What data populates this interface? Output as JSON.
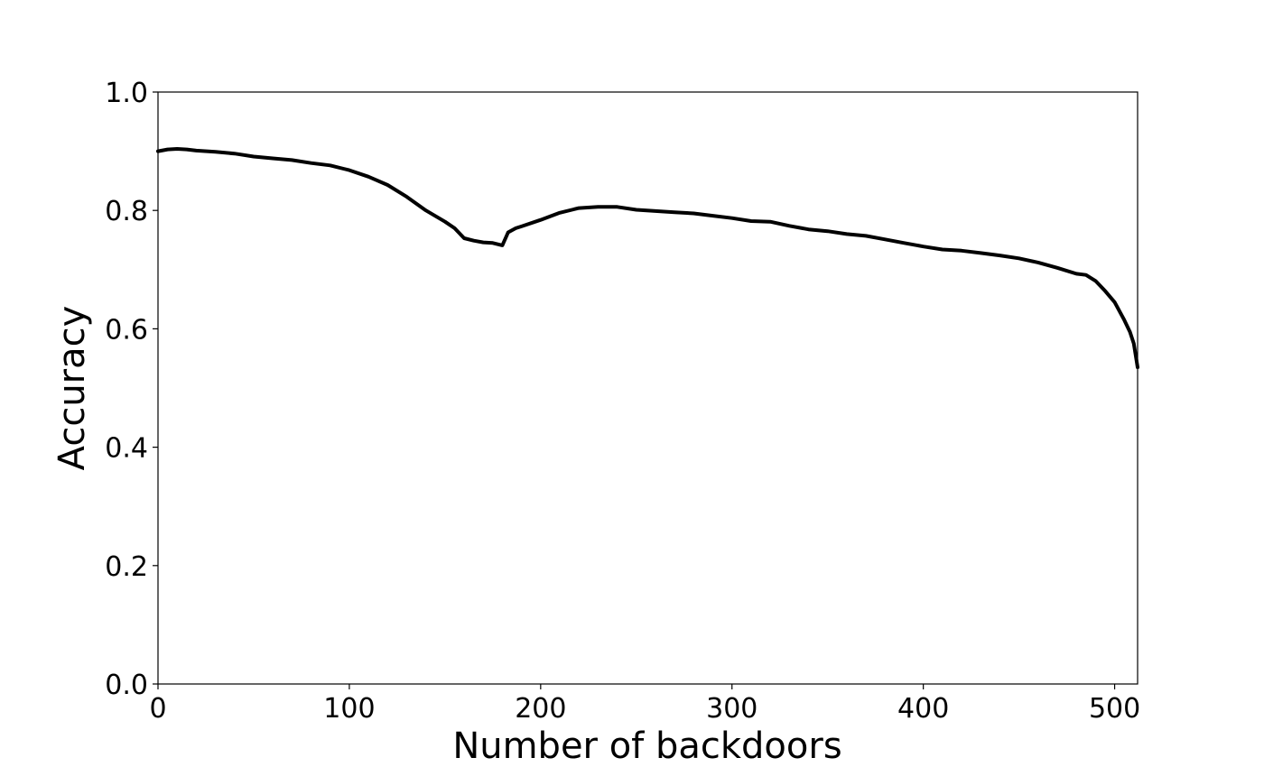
{
  "chart_data": {
    "type": "line",
    "xlabel": "Number of backdoors",
    "ylabel": "Accuracy",
    "xlim": [
      0,
      512
    ],
    "ylim": [
      0.0,
      1.0
    ],
    "xticks": [
      0,
      100,
      200,
      300,
      400,
      500
    ],
    "xtick_labels": [
      "0",
      "100",
      "200",
      "300",
      "400",
      "500"
    ],
    "yticks": [
      0.0,
      0.2,
      0.4,
      0.6,
      0.8,
      1.0
    ],
    "ytick_labels": [
      "0.0",
      "0.2",
      "0.4",
      "0.6",
      "0.8",
      "1.0"
    ],
    "grid": false,
    "line_color": "#000000",
    "series": [
      {
        "x": [
          0,
          5,
          10,
          15,
          20,
          30,
          40,
          50,
          60,
          70,
          80,
          90,
          100,
          110,
          120,
          130,
          140,
          150,
          155,
          160,
          165,
          170,
          175,
          180,
          183,
          187,
          190,
          200,
          210,
          220,
          230,
          240,
          250,
          260,
          270,
          280,
          290,
          300,
          310,
          320,
          330,
          340,
          350,
          360,
          370,
          380,
          390,
          400,
          410,
          420,
          430,
          440,
          450,
          460,
          470,
          480,
          485,
          490,
          495,
          500,
          505,
          508,
          510,
          512
        ],
        "y": [
          0.9,
          0.903,
          0.904,
          0.903,
          0.901,
          0.899,
          0.896,
          0.891,
          0.888,
          0.885,
          0.88,
          0.876,
          0.868,
          0.857,
          0.843,
          0.823,
          0.8,
          0.781,
          0.77,
          0.753,
          0.749,
          0.746,
          0.745,
          0.741,
          0.763,
          0.77,
          0.773,
          0.784,
          0.796,
          0.804,
          0.806,
          0.806,
          0.801,
          0.799,
          0.797,
          0.795,
          0.791,
          0.787,
          0.782,
          0.781,
          0.774,
          0.768,
          0.765,
          0.76,
          0.757,
          0.751,
          0.745,
          0.739,
          0.734,
          0.732,
          0.728,
          0.724,
          0.719,
          0.712,
          0.703,
          0.693,
          0.691,
          0.681,
          0.664,
          0.645,
          0.615,
          0.595,
          0.575,
          0.535
        ]
      }
    ]
  }
}
